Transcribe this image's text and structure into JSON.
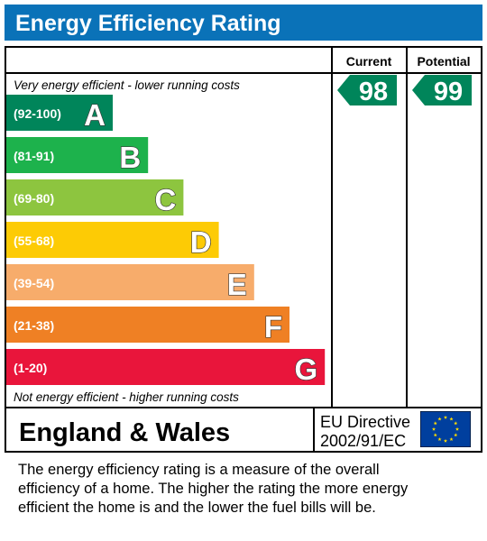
{
  "title": "Energy Efficiency Rating",
  "colors": {
    "title_bar": "#0a72b8",
    "frame": "#000000",
    "arrow": "#00855a"
  },
  "chart_data": {
    "type": "bar",
    "header_current": "Current",
    "header_potential": "Potential",
    "top_note": "Very energy efficient - lower running costs",
    "bottom_note": "Not energy efficient - higher running costs",
    "bands": [
      {
        "range": "(92-100)",
        "letter": "A",
        "color": "#00855a",
        "min": 92,
        "max": 100
      },
      {
        "range": "(81-91)",
        "letter": "B",
        "color": "#1db24c",
        "min": 81,
        "max": 91
      },
      {
        "range": "(69-80)",
        "letter": "C",
        "color": "#8dc53f",
        "min": 69,
        "max": 80
      },
      {
        "range": "(55-68)",
        "letter": "D",
        "color": "#fdcb05",
        "min": 55,
        "max": 68
      },
      {
        "range": "(39-54)",
        "letter": "E",
        "color": "#f7ac6b",
        "min": 39,
        "max": 54
      },
      {
        "range": "(21-38)",
        "letter": "F",
        "color": "#ef8024",
        "min": 21,
        "max": 38
      },
      {
        "range": "(1-20)",
        "letter": "G",
        "color": "#e9153b",
        "min": 1,
        "max": 20
      }
    ],
    "current": {
      "value": 98,
      "label": "98",
      "band": "A"
    },
    "potential": {
      "value": 99,
      "label": "99",
      "band": "A"
    }
  },
  "footer": {
    "region": "England & Wales",
    "directive_line1": "EU Directive",
    "directive_line2": "2002/91/EC",
    "flag_icon": "eu-flag-icon",
    "description_lines": [
      "The energy efficiency rating is a measure of the overall",
      "efficiency of a home.  The higher the rating the more energy",
      "efficient the home is and the lower the fuel bills will be."
    ]
  }
}
